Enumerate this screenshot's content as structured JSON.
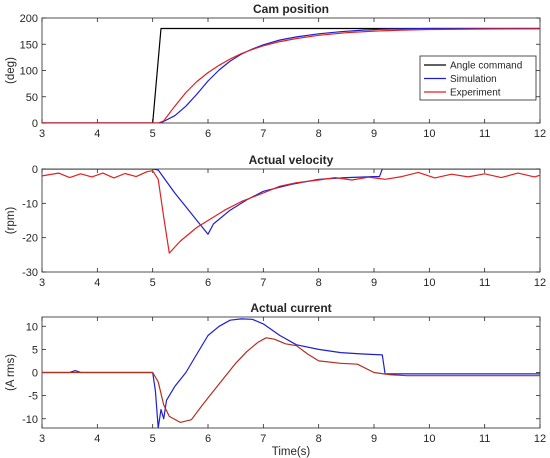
{
  "chart_data": [
    {
      "type": "line",
      "title": "Cam position",
      "xlabel": "",
      "ylabel": "(deg)",
      "xlim": [
        3,
        12
      ],
      "ylim": [
        0,
        200
      ],
      "xticks": [
        "3",
        "4",
        "5",
        "6",
        "7",
        "8",
        "9",
        "10",
        "11",
        "12"
      ],
      "yticks": [
        "0",
        "50",
        "100",
        "150",
        "200"
      ],
      "legend": {
        "position": "right",
        "entries": [
          "Angle command",
          "Simulation",
          "Experiment"
        ]
      },
      "series": [
        {
          "name": "Angle command",
          "color": "#000000",
          "points": [
            [
              3,
              0
            ],
            [
              5.0,
              0
            ],
            [
              5.15,
              180
            ],
            [
              12,
              180
            ]
          ]
        },
        {
          "name": "Simulation",
          "color": "#1f1fd0",
          "points": [
            [
              3,
              0
            ],
            [
              5.15,
              0
            ],
            [
              5.2,
              3
            ],
            [
              5.4,
              14
            ],
            [
              5.6,
              32
            ],
            [
              5.8,
              55
            ],
            [
              6.0,
              80
            ],
            [
              6.2,
              101
            ],
            [
              6.4,
              118
            ],
            [
              6.6,
              131
            ],
            [
              6.8,
              141
            ],
            [
              7.0,
              149
            ],
            [
              7.3,
              158
            ],
            [
              7.6,
              164
            ],
            [
              8.0,
              170
            ],
            [
              8.4,
              174
            ],
            [
              8.8,
              177
            ],
            [
              9.1,
              178.5
            ],
            [
              9.5,
              179.5
            ],
            [
              10,
              180
            ],
            [
              12,
              180
            ]
          ]
        },
        {
          "name": "Experiment",
          "color": "#e02020",
          "points": [
            [
              3,
              0
            ],
            [
              5.1,
              0
            ],
            [
              5.2,
              4
            ],
            [
              5.4,
              32
            ],
            [
              5.6,
              58
            ],
            [
              5.8,
              79
            ],
            [
              6.0,
              96
            ],
            [
              6.2,
              110
            ],
            [
              6.4,
              122
            ],
            [
              6.6,
              132
            ],
            [
              6.8,
              140
            ],
            [
              7.0,
              147
            ],
            [
              7.3,
              155
            ],
            [
              7.6,
              161
            ],
            [
              8.0,
              167
            ],
            [
              8.5,
              172
            ],
            [
              9.0,
              175
            ],
            [
              9.5,
              177
            ],
            [
              10,
              178
            ],
            [
              10.5,
              178.5
            ],
            [
              11,
              179
            ],
            [
              12,
              179.5
            ]
          ]
        }
      ]
    },
    {
      "type": "line",
      "title": "Actual velocity",
      "xlabel": "",
      "ylabel": "(rpm)",
      "xlim": [
        3,
        12
      ],
      "ylim": [
        -30,
        0
      ],
      "xticks": [
        "3",
        "4",
        "5",
        "6",
        "7",
        "8",
        "9",
        "10",
        "11",
        "12"
      ],
      "yticks": [
        "-30",
        "-20",
        "-10",
        "0"
      ],
      "series": [
        {
          "name": "Simulation",
          "color": "#1f1fd0",
          "points": [
            [
              3,
              0
            ],
            [
              5.0,
              0
            ],
            [
              5.1,
              -0.3
            ],
            [
              5.2,
              -2.5
            ],
            [
              5.4,
              -7
            ],
            [
              5.6,
              -11
            ],
            [
              5.8,
              -15
            ],
            [
              6.0,
              -19
            ],
            [
              6.1,
              -16
            ],
            [
              6.4,
              -12
            ],
            [
              6.7,
              -9
            ],
            [
              7.0,
              -6.5
            ],
            [
              7.5,
              -4.5
            ],
            [
              8.0,
              -3
            ],
            [
              8.5,
              -2.5
            ],
            [
              9.0,
              -2.2
            ],
            [
              9.1,
              -2.2
            ],
            [
              9.15,
              0
            ],
            [
              12,
              0
            ]
          ]
        },
        {
          "name": "Experiment",
          "color": "#e02020",
          "points": [
            [
              3,
              -2
            ],
            [
              3.3,
              -1.2
            ],
            [
              3.5,
              -2.5
            ],
            [
              3.7,
              -1.4
            ],
            [
              3.9,
              -2.3
            ],
            [
              4.1,
              -1.2
            ],
            [
              4.3,
              -2.6
            ],
            [
              4.5,
              -1.3
            ],
            [
              4.7,
              -2.2
            ],
            [
              4.9,
              -0.8
            ],
            [
              5.0,
              -0.5
            ],
            [
              5.1,
              -3
            ],
            [
              5.2,
              -14
            ],
            [
              5.3,
              -24.5
            ],
            [
              5.5,
              -21
            ],
            [
              5.8,
              -17
            ],
            [
              6.0,
              -15
            ],
            [
              6.3,
              -12
            ],
            [
              6.6,
              -9.5
            ],
            [
              7.0,
              -7
            ],
            [
              7.3,
              -5
            ],
            [
              7.6,
              -4
            ],
            [
              8.0,
              -3.2
            ],
            [
              8.3,
              -2.5
            ],
            [
              8.6,
              -3.2
            ],
            [
              8.9,
              -2.4
            ],
            [
              9.2,
              -3
            ],
            [
              9.5,
              -2.2
            ],
            [
              9.8,
              -1
            ],
            [
              10.1,
              -2.6
            ],
            [
              10.4,
              -1.5
            ],
            [
              10.7,
              -2.3
            ],
            [
              11.0,
              -1.4
            ],
            [
              11.3,
              -2.5
            ],
            [
              11.6,
              -1.2
            ],
            [
              11.9,
              -2.3
            ],
            [
              12,
              -1.8
            ]
          ]
        }
      ]
    },
    {
      "type": "line",
      "title": "Actual current",
      "xlabel": "Time(s)",
      "ylabel": "(A rms)",
      "xlim": [
        3,
        12
      ],
      "ylim": [
        -12,
        12
      ],
      "xticks": [
        "3",
        "4",
        "5",
        "6",
        "7",
        "8",
        "9",
        "10",
        "11",
        "12"
      ],
      "yticks": [
        "-10",
        "-5",
        "0",
        "5",
        "10"
      ],
      "series": [
        {
          "name": "Simulation",
          "color": "#1f1fd0",
          "points": [
            [
              3,
              0
            ],
            [
              3.5,
              0
            ],
            [
              3.6,
              0.4
            ],
            [
              3.7,
              0
            ],
            [
              5.0,
              0
            ],
            [
              5.05,
              -4
            ],
            [
              5.1,
              -12
            ],
            [
              5.15,
              -8
            ],
            [
              5.2,
              -10
            ],
            [
              5.25,
              -6
            ],
            [
              5.4,
              -3
            ],
            [
              5.6,
              0
            ],
            [
              5.8,
              4
            ],
            [
              6.0,
              8
            ],
            [
              6.2,
              10
            ],
            [
              6.4,
              11.3
            ],
            [
              6.6,
              11.6
            ],
            [
              6.8,
              11.5
            ],
            [
              7.0,
              10.5
            ],
            [
              7.3,
              8
            ],
            [
              7.6,
              6
            ],
            [
              8.0,
              5
            ],
            [
              8.4,
              4.3
            ],
            [
              8.8,
              4
            ],
            [
              9.15,
              3.8
            ],
            [
              9.2,
              -0.3
            ],
            [
              9.5,
              -0.3
            ],
            [
              12,
              -0.3
            ]
          ]
        },
        {
          "name": "Experiment",
          "color": "#b03020",
          "points": [
            [
              3,
              0
            ],
            [
              5.0,
              0
            ],
            [
              5.1,
              -2
            ],
            [
              5.2,
              -7
            ],
            [
              5.3,
              -9.5
            ],
            [
              5.5,
              -10.8
            ],
            [
              5.7,
              -10.2
            ],
            [
              5.9,
              -7
            ],
            [
              6.1,
              -4
            ],
            [
              6.3,
              -1
            ],
            [
              6.5,
              2
            ],
            [
              6.7,
              4.5
            ],
            [
              6.9,
              6.5
            ],
            [
              7.05,
              7.5
            ],
            [
              7.2,
              7.2
            ],
            [
              7.4,
              6.2
            ],
            [
              7.6,
              5.8
            ],
            [
              7.8,
              4
            ],
            [
              8.0,
              2.5
            ],
            [
              8.4,
              2
            ],
            [
              8.7,
              1.8
            ],
            [
              9.0,
              0
            ],
            [
              9.3,
              -0.5
            ],
            [
              9.6,
              -0.7
            ],
            [
              12,
              -0.7
            ]
          ]
        }
      ]
    }
  ]
}
